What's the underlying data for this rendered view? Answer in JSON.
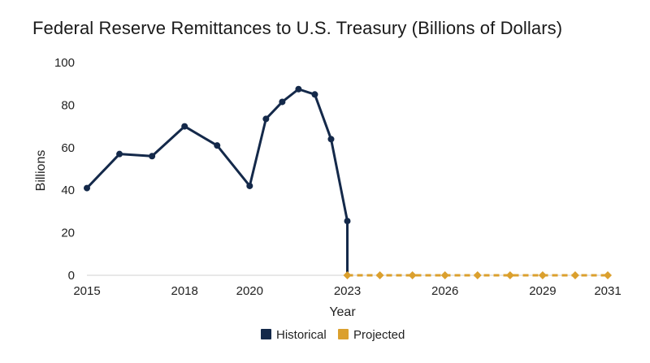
{
  "chart_data": {
    "type": "line",
    "title": "Federal Reserve Remittances to U.S. Treasury (Billions of Dollars)",
    "xlabel": "Year",
    "ylabel": "Billions",
    "xlim": [
      2015,
      2031
    ],
    "ylim": [
      0,
      100
    ],
    "x_ticks": [
      2015,
      2018,
      2020,
      2023,
      2026,
      2029,
      2031
    ],
    "y_ticks": [
      0,
      20,
      40,
      60,
      80,
      100
    ],
    "grid": false,
    "legend_position": "bottom-center",
    "series": [
      {
        "name": "Historical",
        "color": "#14294a",
        "marker": "circle",
        "line_style": "solid",
        "x": [
          2015,
          2016,
          2017,
          2018,
          2019,
          2020,
          2020.5,
          2021,
          2021.5,
          2022,
          2022.5,
          2023
        ],
        "y": [
          41,
          57,
          56,
          70,
          61,
          42,
          73.5,
          81.5,
          87.5,
          85,
          64,
          25.5
        ]
      },
      {
        "name": "Projected",
        "color": "#dba02e",
        "marker": "diamond",
        "line_style": "dashed",
        "x": [
          2023,
          2024,
          2025,
          2026,
          2027,
          2028,
          2029,
          2030,
          2031
        ],
        "y": [
          0,
          0,
          0,
          0,
          0,
          0,
          0,
          0,
          0
        ]
      }
    ]
  }
}
